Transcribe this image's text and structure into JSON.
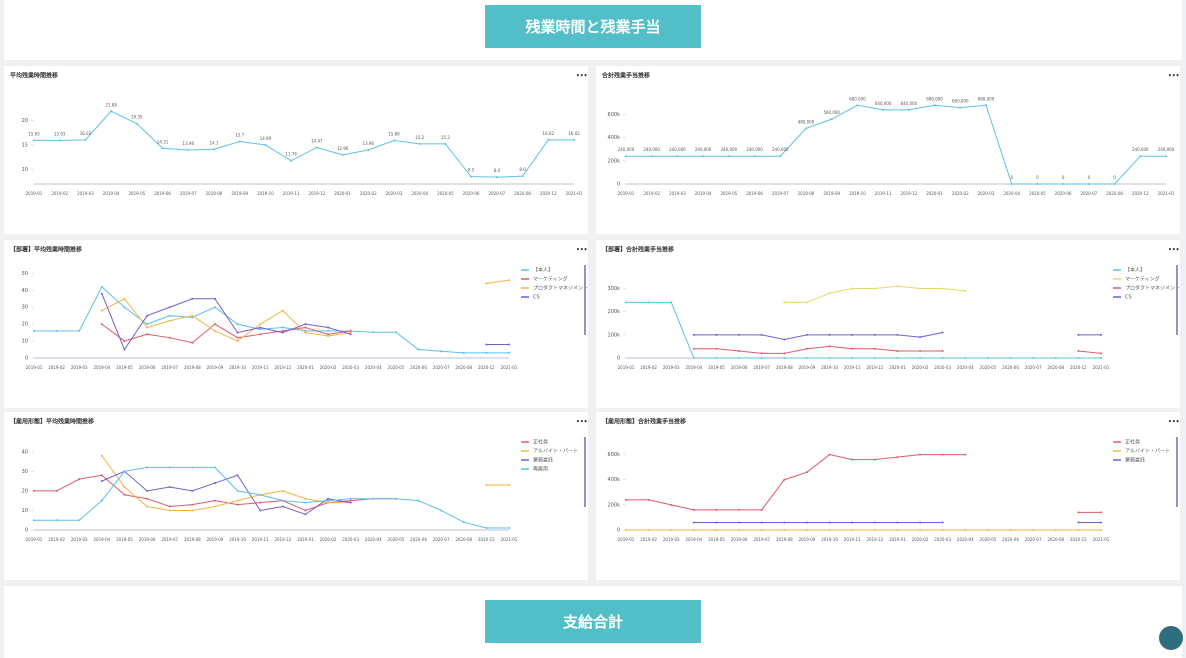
{
  "header": {
    "title": "残業時間と残業手当"
  },
  "footer": {
    "title": "支給合計"
  },
  "chart_data": [
    {
      "type": "line",
      "title": "平均残業時間推移",
      "color": "#5bc0eb",
      "categories": [
        "2019-01",
        "2019-02",
        "2019-03",
        "2019-04",
        "2019-05",
        "2019-06",
        "2019-07",
        "2019-08",
        "2019-09",
        "2019-10",
        "2019-11",
        "2019-12",
        "2020-01",
        "2020-02",
        "2020-03",
        "2020-04",
        "2020-05",
        "2020-06",
        "2020-07",
        "2020-08",
        "2020-12",
        "2021-01"
      ],
      "values": [
        15.93,
        15.93,
        16.02,
        21.88,
        19.35,
        14.31,
        13.96,
        14.1,
        15.7,
        14.99,
        11.76,
        14.47,
        12.96,
        13.96,
        15.89,
        15.2,
        15.2,
        8.5,
        8.4,
        8.6,
        16.02,
        16.02
      ],
      "ylim": [
        7,
        25
      ],
      "yticks": [
        10,
        15,
        20
      ],
      "grid": false
    },
    {
      "type": "line",
      "title": "合計残業手当推移",
      "color": "#5bc0eb",
      "categories": [
        "2019-01",
        "2019-02",
        "2019-03",
        "2019-04",
        "2019-05",
        "2019-06",
        "2019-07",
        "2019-08",
        "2019-09",
        "2019-10",
        "2019-11",
        "2019-12",
        "2020-01",
        "2020-02",
        "2020-03",
        "2020-04",
        "2020-05",
        "2020-06",
        "2020-07",
        "2020-08",
        "2020-12",
        "2021-01"
      ],
      "values": [
        240000,
        240000,
        240000,
        240000,
        240000,
        240000,
        240000,
        480000,
        560000,
        680000,
        640000,
        640000,
        680000,
        660000,
        680000,
        0,
        0,
        0,
        0,
        0,
        240000,
        240000
      ],
      "value_labels": [
        "240,000",
        "240,000",
        "240,000",
        "240,000",
        "240,000",
        "240,000",
        "240,000",
        "480,000",
        "560,000",
        "680,000",
        "640,000",
        "640,000",
        "680,000",
        "660,000",
        "680,000",
        "0",
        "0",
        "0",
        "0",
        "0",
        "240,000",
        "240,000"
      ],
      "ylim": [
        0,
        760000
      ],
      "yticks": [
        0,
        {
          "value": 200000,
          "label": "200k"
        },
        {
          "value": 400000,
          "label": "400k"
        },
        {
          "value": 600000,
          "label": "600k"
        }
      ],
      "grid": false
    },
    {
      "type": "line",
      "title": "【部署】平均残業時間推移",
      "categories": [
        "2019-01",
        "2019-02",
        "2019-03",
        "2019-04",
        "2019-05",
        "2019-06",
        "2019-07",
        "2019-08",
        "2019-09",
        "2019-10",
        "2019-11",
        "2019-12",
        "2020-01",
        "2020-02",
        "2020-03",
        "2020-04",
        "2020-05",
        "2020-06",
        "2020-07",
        "2020-08",
        "2020-12",
        "2021-01"
      ],
      "series": [
        {
          "name": "【本人】",
          "color": "#5bc0eb",
          "values": [
            15.93,
            15.93,
            16.02,
            42,
            30,
            20,
            25,
            24,
            30,
            20,
            17,
            18,
            16,
            16,
            15.9,
            15.2,
            15.2,
            5,
            4,
            3,
            3,
            3
          ]
        },
        {
          "name": "マーケティング",
          "color": "#e05a6a",
          "values": [
            null,
            null,
            null,
            20,
            10,
            14,
            12,
            9,
            20,
            12,
            14,
            16,
            18,
            14,
            16,
            null,
            null,
            null,
            null,
            null,
            null,
            null
          ]
        },
        {
          "name": "プロダクトマネジメント",
          "color": "#f2b544",
          "values": [
            null,
            null,
            null,
            28,
            35,
            18,
            22,
            25,
            16,
            10,
            20,
            28,
            15,
            13,
            15,
            null,
            null,
            null,
            null,
            null,
            44,
            46
          ]
        },
        {
          "name": "CS",
          "color": "#7a5cc9",
          "values": [
            null,
            null,
            null,
            38,
            5,
            25,
            30,
            35,
            35,
            15,
            18,
            15,
            20,
            18,
            14,
            null,
            null,
            null,
            null,
            null,
            8,
            8
          ]
        }
      ],
      "ylim": [
        0,
        52
      ],
      "yticks": [
        0,
        10,
        20,
        30,
        40,
        50
      ],
      "grid": false,
      "legend": "right"
    },
    {
      "type": "line",
      "title": "【部署】合計残業手当推移",
      "categories": [
        "2019-01",
        "2019-02",
        "2019-03",
        "2019-04",
        "2019-05",
        "2019-06",
        "2019-07",
        "2019-08",
        "2019-09",
        "2019-10",
        "2019-11",
        "2019-12",
        "2020-01",
        "2020-02",
        "2020-03",
        "2020-04",
        "2020-05",
        "2020-06",
        "2020-07",
        "2020-08",
        "2020-12",
        "2021-01"
      ],
      "series": [
        {
          "name": "【本人】",
          "color": "#5bc0eb",
          "values": [
            240000,
            240000,
            240000,
            0,
            0,
            0,
            0,
            0,
            0,
            0,
            0,
            0,
            0,
            0,
            0,
            0,
            0,
            0,
            0,
            0,
            0,
            0
          ]
        },
        {
          "name": "マーケティング",
          "color": "#e3d86a",
          "values": [
            null,
            null,
            null,
            null,
            null,
            null,
            null,
            240000,
            240000,
            280000,
            300000,
            300000,
            310000,
            300000,
            300000,
            290000,
            null,
            null,
            null,
            null,
            null,
            null
          ]
        },
        {
          "name": "プロダクトマネジメント",
          "color": "#e05a6a",
          "values": [
            null,
            null,
            null,
            40000,
            40000,
            30000,
            20000,
            20000,
            40000,
            50000,
            40000,
            40000,
            30000,
            30000,
            30000,
            null,
            null,
            null,
            null,
            null,
            30000,
            20000
          ]
        },
        {
          "name": "CS",
          "color": "#7a5cc9",
          "values": [
            null,
            null,
            null,
            100000,
            100000,
            100000,
            100000,
            80000,
            100000,
            100000,
            100000,
            100000,
            100000,
            90000,
            110000,
            null,
            null,
            null,
            null,
            null,
            100000,
            100000
          ]
        }
      ],
      "ylim": [
        0,
        380000
      ],
      "yticks": [
        0,
        {
          "value": 100000,
          "label": "100k"
        },
        {
          "value": 200000,
          "label": "200k"
        },
        {
          "value": 300000,
          "label": "300k"
        }
      ],
      "grid": false,
      "legend": "right"
    },
    {
      "type": "line",
      "title": "【雇用形態】平均残業時間推移",
      "categories": [
        "2019-01",
        "2019-02",
        "2019-03",
        "2019-04",
        "2019-05",
        "2019-06",
        "2019-07",
        "2019-08",
        "2019-09",
        "2019-10",
        "2019-11",
        "2019-12",
        "2020-01",
        "2020-02",
        "2020-03",
        "2020-04",
        "2020-05",
        "2020-06",
        "2020-07",
        "2020-08",
        "2020-12",
        "2021-01"
      ],
      "series": [
        {
          "name": "正社員",
          "color": "#e05a6a",
          "values": [
            20,
            20,
            26,
            28,
            18,
            16,
            12,
            13,
            15,
            13,
            14,
            15,
            10,
            14,
            15,
            16,
            16,
            null,
            null,
            null,
            null,
            null
          ]
        },
        {
          "name": "アルバイト・パート",
          "color": "#f2b544",
          "values": [
            null,
            null,
            null,
            38,
            22,
            12,
            10,
            10,
            12,
            15,
            18,
            20,
            16,
            14,
            14,
            null,
            null,
            null,
            null,
            null,
            23,
            23
          ]
        },
        {
          "name": "業務委託",
          "color": "#7a5cc9",
          "values": [
            null,
            null,
            null,
            25,
            30,
            20,
            22,
            20,
            24,
            28,
            10,
            12,
            8,
            16,
            14,
            null,
            null,
            null,
            null,
            null,
            null,
            null
          ]
        },
        {
          "name": "再雇用",
          "color": "#5bc0eb",
          "values": [
            5,
            5,
            5,
            15,
            30,
            32,
            32,
            32,
            32,
            20,
            18,
            15,
            14,
            15,
            16,
            16,
            16,
            15,
            10,
            4,
            1,
            1
          ]
        }
      ],
      "ylim": [
        0,
        45
      ],
      "yticks": [
        0,
        10,
        20,
        30,
        40
      ],
      "grid": false,
      "legend": "right"
    },
    {
      "type": "line",
      "title": "【雇用形態】合計残業手当推移",
      "categories": [
        "2019-01",
        "2019-02",
        "2019-03",
        "2019-04",
        "2019-05",
        "2019-06",
        "2019-07",
        "2019-08",
        "2019-09",
        "2019-10",
        "2019-11",
        "2019-12",
        "2020-01",
        "2020-02",
        "2020-03",
        "2020-04",
        "2020-05",
        "2020-06",
        "2020-07",
        "2020-08",
        "2020-12",
        "2021-01"
      ],
      "series": [
        {
          "name": "正社員",
          "color": "#e05a6a",
          "values": [
            240000,
            240000,
            200000,
            160000,
            160000,
            160000,
            160000,
            400000,
            460000,
            600000,
            560000,
            560000,
            580000,
            600000,
            600000,
            600000,
            null,
            null,
            null,
            null,
            140000,
            140000
          ]
        },
        {
          "name": "アルバイト・パート",
          "color": "#f2b544",
          "values": [
            0,
            0,
            0,
            0,
            0,
            0,
            0,
            0,
            0,
            0,
            0,
            0,
            0,
            0,
            0,
            0,
            0,
            0,
            0,
            0,
            0,
            0
          ]
        },
        {
          "name": "業務委託",
          "color": "#7a5cc9",
          "values": [
            null,
            null,
            null,
            60000,
            60000,
            60000,
            60000,
            60000,
            60000,
            60000,
            60000,
            60000,
            60000,
            60000,
            60000,
            null,
            null,
            null,
            null,
            null,
            60000,
            60000
          ]
        }
      ],
      "ylim": [
        0,
        700000
      ],
      "yticks": [
        0,
        {
          "value": 200000,
          "label": "200k"
        },
        {
          "value": 400000,
          "label": "400k"
        },
        {
          "value": 600000,
          "label": "600k"
        }
      ],
      "grid": false,
      "legend": "right"
    }
  ]
}
